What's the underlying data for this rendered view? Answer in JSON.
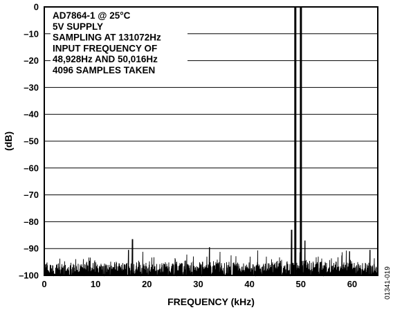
{
  "chart_data": {
    "type": "line",
    "title": "",
    "xlabel": "FREQUENCY (kHz)",
    "ylabel": "(dB)",
    "xlim": [
      0,
      65
    ],
    "ylim": [
      -100,
      0
    ],
    "x_ticks": [
      0,
      10,
      20,
      30,
      40,
      50,
      60
    ],
    "y_ticks": [
      0,
      -10,
      -20,
      -30,
      -40,
      -50,
      -60,
      -70,
      -80,
      -90,
      -100
    ],
    "grid": true,
    "annotation_lines": [
      "AD7864-1 @ 25°C",
      "5V SUPPLY",
      "SAMPLING AT 131072Hz",
      "INPUT FREQUENCY OF",
      "48,928Hz AND 50,016Hz",
      "4096 SAMPLES TAKEN"
    ],
    "series": [
      {
        "noise_floor_db": -97,
        "peaks": [
          {
            "x": 48.928,
            "y": 0
          },
          {
            "x": 50.016,
            "y": 0
          }
        ],
        "spurs": [
          {
            "x": 17.2,
            "y": -86.5
          },
          {
            "x": 16.4,
            "y": -90.5
          },
          {
            "x": 32.2,
            "y": -89.5
          },
          {
            "x": 48.2,
            "y": -83
          },
          {
            "x": 50.8,
            "y": -87
          },
          {
            "x": 59.5,
            "y": -91
          },
          {
            "x": 63.5,
            "y": -90.5
          }
        ]
      }
    ]
  },
  "figure_id": "01341-019"
}
